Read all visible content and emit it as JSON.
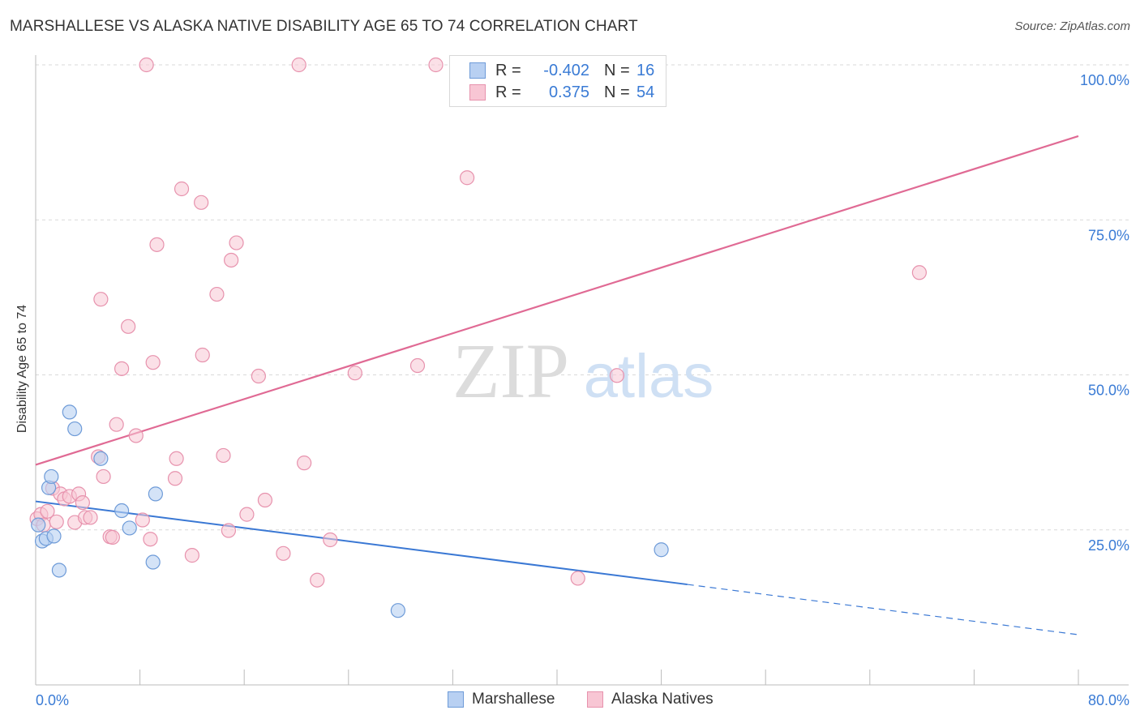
{
  "header": {
    "title": "MARSHALLESE VS ALASKA NATIVE DISABILITY AGE 65 TO 74 CORRELATION CHART",
    "source": "Source: ZipAtlas.com"
  },
  "watermark": {
    "zip": "ZIP",
    "atlas": "atlas"
  },
  "legend": {
    "rows": [
      {
        "r_label": "R =",
        "r_value": "-0.402",
        "n_label": "N =",
        "n_value": "16"
      },
      {
        "r_label": "R =",
        "r_value": "0.375",
        "n_label": "N =",
        "n_value": "54"
      }
    ]
  },
  "bottom_legend": {
    "series1": "Marshallese",
    "series2": "Alaska Natives"
  },
  "colors": {
    "blue_fill": "#b8d0f2",
    "blue_stroke": "#6e9bd8",
    "blue_line": "#3a78d4",
    "pink_fill": "#f8c6d4",
    "pink_stroke": "#e792ad",
    "pink_line": "#e06a94",
    "tick_label": "#3a7bd5",
    "grid": "#d9d9d9"
  },
  "chart_data": {
    "type": "scatter",
    "title": "MARSHALLESE VS ALASKA NATIVE DISABILITY AGE 65 TO 74 CORRELATION CHART",
    "xlabel": "",
    "ylabel": "Disability Age 65 to 74",
    "xlim": [
      0,
      80
    ],
    "ylim": [
      0,
      102
    ],
    "x_tick_labels": [
      "0.0%",
      "80.0%"
    ],
    "y_ticks": [
      25,
      50,
      75,
      100
    ],
    "y_tick_labels": [
      "25.0%",
      "50.0%",
      "75.0%",
      "100.0%"
    ],
    "grid": true,
    "legend_position": "top-center",
    "series": [
      {
        "name": "Marshallese",
        "r": -0.402,
        "n": 16,
        "points": [
          [
            0.2,
            25.8
          ],
          [
            0.5,
            23.2
          ],
          [
            0.8,
            23.6
          ],
          [
            1.0,
            31.8
          ],
          [
            1.2,
            33.6
          ],
          [
            1.4,
            24.0
          ],
          [
            1.8,
            18.5
          ],
          [
            2.6,
            44.0
          ],
          [
            3.0,
            41.3
          ],
          [
            5.0,
            36.5
          ],
          [
            6.6,
            28.1
          ],
          [
            7.2,
            25.3
          ],
          [
            9.0,
            19.8
          ],
          [
            9.2,
            30.8
          ],
          [
            27.8,
            12.0
          ],
          [
            48.0,
            21.8
          ]
        ],
        "trend": {
          "x0": 0,
          "y0": 29.6,
          "x1": 50,
          "y1": 16.2,
          "dash_x1": 80,
          "dash_y1": 8.1
        }
      },
      {
        "name": "Alaska Natives",
        "r": 0.375,
        "n": 54,
        "points": [
          [
            0.1,
            26.8
          ],
          [
            0.4,
            27.5
          ],
          [
            0.6,
            25.8
          ],
          [
            0.9,
            28.0
          ],
          [
            1.3,
            31.7
          ],
          [
            1.6,
            26.3
          ],
          [
            1.9,
            30.8
          ],
          [
            2.2,
            30.0
          ],
          [
            2.6,
            30.4
          ],
          [
            3.0,
            26.2
          ],
          [
            3.3,
            30.8
          ],
          [
            3.6,
            29.4
          ],
          [
            3.8,
            27.0
          ],
          [
            4.2,
            27.0
          ],
          [
            4.8,
            36.8
          ],
          [
            5.0,
            62.2
          ],
          [
            5.2,
            33.6
          ],
          [
            5.7,
            23.9
          ],
          [
            5.9,
            23.8
          ],
          [
            6.2,
            42.0
          ],
          [
            6.6,
            51.0
          ],
          [
            7.1,
            57.8
          ],
          [
            7.7,
            40.2
          ],
          [
            8.2,
            26.6
          ],
          [
            8.5,
            100.0
          ],
          [
            8.8,
            23.5
          ],
          [
            9.0,
            52.0
          ],
          [
            9.3,
            71.0
          ],
          [
            10.7,
            33.3
          ],
          [
            10.8,
            36.5
          ],
          [
            11.2,
            80.0
          ],
          [
            12.0,
            20.9
          ],
          [
            12.7,
            77.8
          ],
          [
            12.8,
            53.2
          ],
          [
            13.9,
            63.0
          ],
          [
            14.4,
            37.0
          ],
          [
            14.8,
            24.9
          ],
          [
            15.0,
            68.5
          ],
          [
            15.4,
            71.3
          ],
          [
            16.2,
            27.5
          ],
          [
            17.1,
            49.8
          ],
          [
            17.6,
            29.8
          ],
          [
            19.0,
            21.2
          ],
          [
            20.2,
            100.0
          ],
          [
            20.6,
            35.8
          ],
          [
            21.6,
            16.9
          ],
          [
            22.6,
            23.4
          ],
          [
            24.5,
            50.3
          ],
          [
            29.3,
            51.5
          ],
          [
            30.7,
            100.0
          ],
          [
            33.1,
            81.8
          ],
          [
            41.6,
            17.2
          ],
          [
            44.6,
            49.9
          ],
          [
            67.8,
            66.5
          ]
        ],
        "trend": {
          "x0": 0,
          "y0": 35.5,
          "x1": 80,
          "y1": 88.5
        }
      }
    ]
  }
}
